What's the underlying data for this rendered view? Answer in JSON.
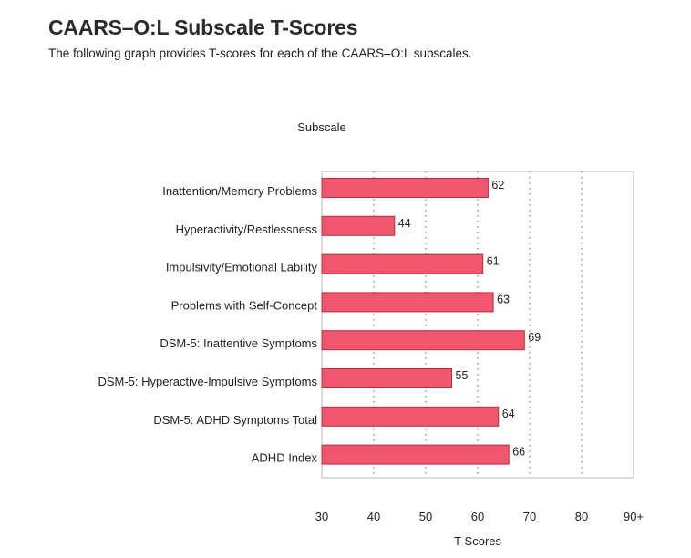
{
  "title": "CAARS–O:L Subscale T-Scores",
  "subtitle": "The following graph provides T-scores for each of the CAARS–O:L subscales.",
  "chart_data": {
    "type": "bar",
    "orientation": "horizontal",
    "ylabel": "Subscale",
    "xlabel": "T-Scores",
    "categories": [
      "Inattention/Memory Problems",
      "Hyperactivity/Restlessness",
      "Impulsivity/Emotional Lability",
      "Problems with Self-Concept",
      "DSM-5: Inattentive Symptoms",
      "DSM-5: Hyperactive-Impulsive Symptoms",
      "DSM-5: ADHD Symptoms Total",
      "ADHD Index"
    ],
    "values": [
      62,
      44,
      61,
      63,
      69,
      55,
      64,
      66
    ],
    "xlim": [
      30,
      90
    ],
    "xticks": [
      "30",
      "40",
      "50",
      "60",
      "70",
      "80",
      "90+"
    ],
    "grid": "vertical dotted",
    "bar_color": "#f0566e",
    "bar_edge_color": "#b3303f"
  }
}
